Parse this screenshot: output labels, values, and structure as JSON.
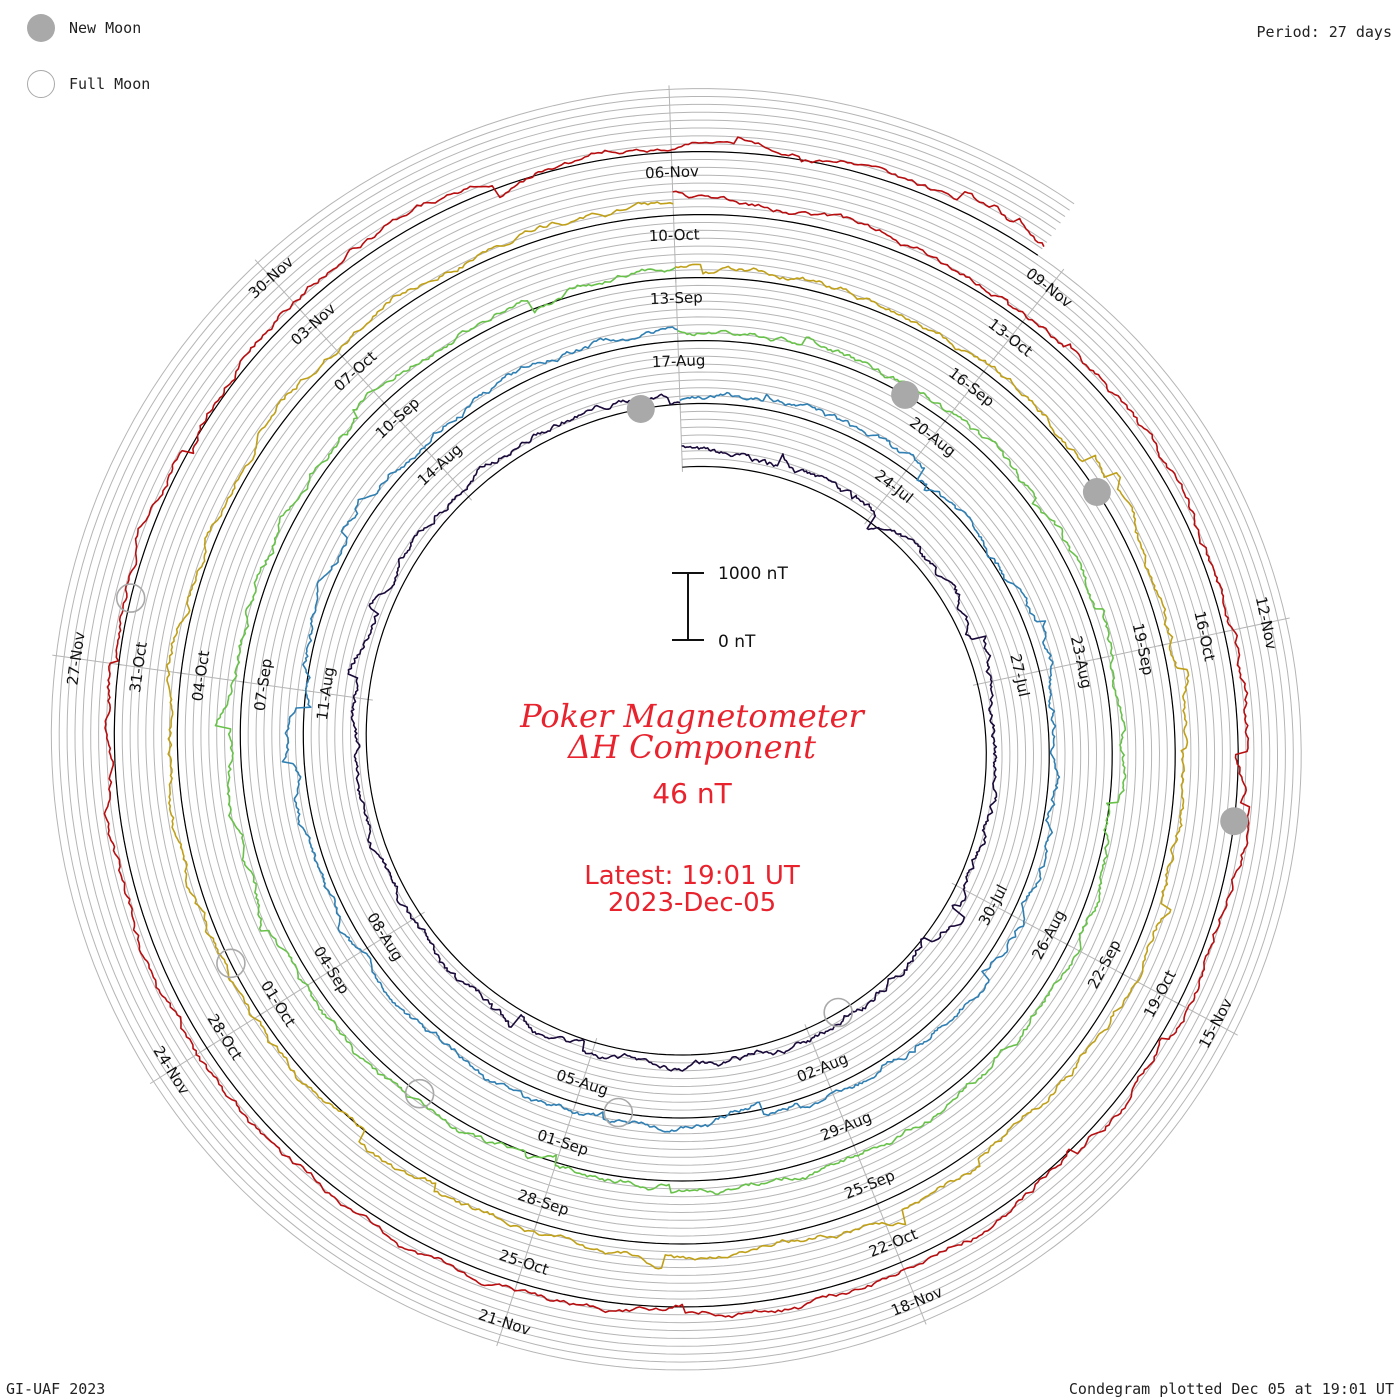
{
  "legend": {
    "new_moon_label": "New Moon",
    "full_moon_label": "Full Moon"
  },
  "period_label": "Period: 27 days",
  "footer": {
    "left": "GI-UAF 2023",
    "right": "Condegram plotted Dec 05 at 19:01 UT"
  },
  "title": {
    "line1": "Poker Magnetometer",
    "line2": "ΔH Component",
    "value": "46 nT",
    "latest": "Latest: 19:01 UT",
    "date": "2023-Dec-05"
  },
  "scale_bar": {
    "top_label": "1000 nT",
    "bottom_label": "0 nT"
  },
  "colors": {
    "title": "#e8232e",
    "grid": "#b5b5b5",
    "moon": "#a9a9a9"
  },
  "chart_data": {
    "type": "line",
    "subtype": "spiral condegram",
    "period_days": 27,
    "start_date": "2023-07-21",
    "end_date": "2023-12-05",
    "y_unit": "nT",
    "series_colors": [
      "#1a0a3a",
      "#26248a",
      "#2f7fb3",
      "#2fb8a0",
      "#68c24a",
      "#a8b92a",
      "#c0a018",
      "#c84a10",
      "#b80e10"
    ],
    "date_labels": [
      "24-Jul",
      "27-Jul",
      "30-Jul",
      "02-Aug",
      "05-Aug",
      "08-Aug",
      "11-Aug",
      "14-Aug",
      "17-Aug",
      "20-Aug",
      "23-Aug",
      "26-Aug",
      "29-Aug",
      "01-Sep",
      "04-Sep",
      "07-Sep",
      "10-Sep",
      "13-Sep",
      "16-Sep",
      "19-Sep",
      "22-Sep",
      "25-Sep",
      "28-Sep",
      "01-Oct",
      "04-Oct",
      "07-Oct",
      "10-Oct",
      "13-Oct",
      "16-Oct",
      "19-Oct",
      "22-Oct",
      "25-Oct",
      "28-Oct",
      "31-Oct",
      "03-Nov",
      "06-Nov",
      "09-Nov",
      "12-Nov",
      "15-Nov",
      "18-Nov",
      "21-Nov",
      "24-Nov",
      "27-Nov",
      "30-Nov"
    ],
    "new_moons": [
      "2023-08-16",
      "2023-09-15",
      "2023-10-14",
      "2023-11-13"
    ],
    "full_moons": [
      "2023-08-01",
      "2023-08-31",
      "2023-09-29",
      "2023-10-28",
      "2023-11-27"
    ]
  }
}
